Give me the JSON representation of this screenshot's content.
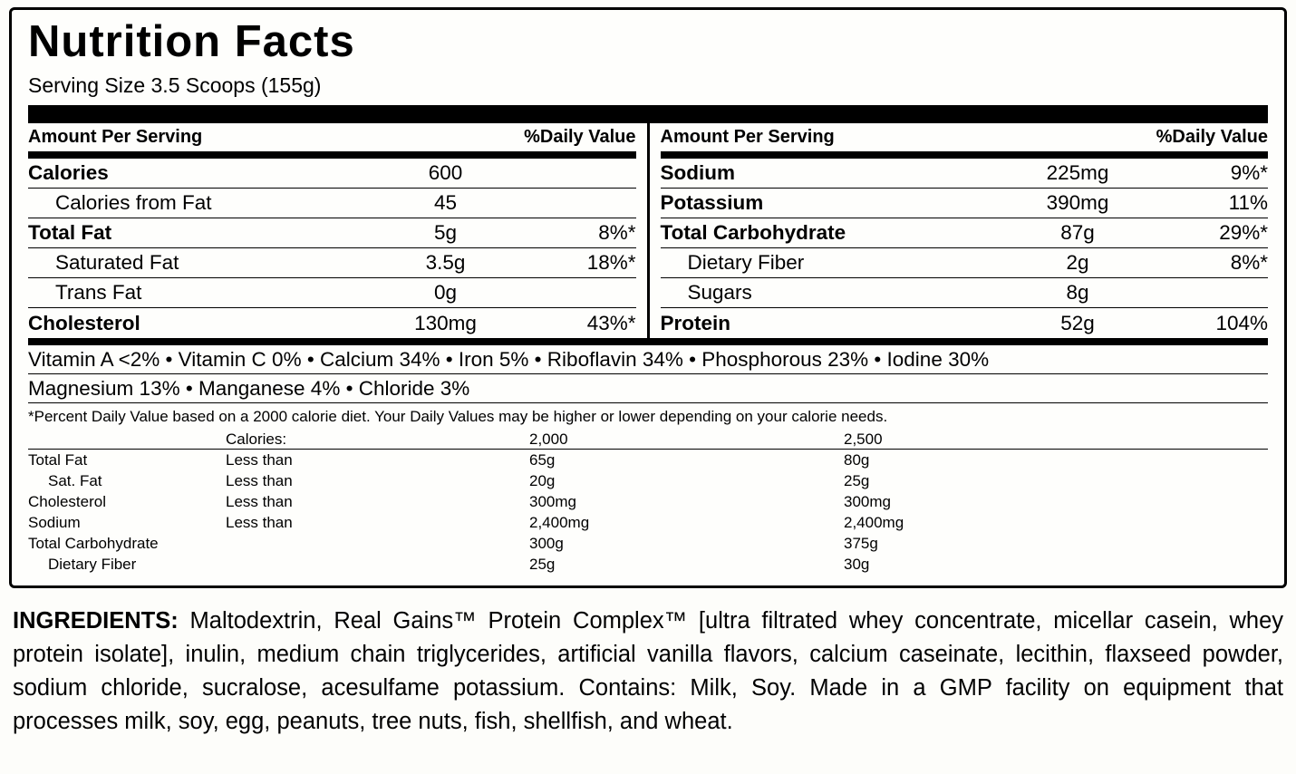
{
  "title": "Nutrition Facts",
  "serving_size": "Serving Size 3.5 Scoops (155g)",
  "header": {
    "amount_per_serving": "Amount Per Serving",
    "daily_value": "%Daily Value"
  },
  "left_column": {
    "rows": [
      {
        "name": "Calories",
        "amount": "600",
        "dv": ""
      },
      {
        "name": "Calories from Fat",
        "amount": "45",
        "dv": ""
      },
      {
        "name": "Total Fat",
        "amount": "5g",
        "dv": "8%*"
      },
      {
        "name": "Saturated Fat",
        "amount": "3.5g",
        "dv": "18%*"
      },
      {
        "name": "Trans Fat",
        "amount": "0g",
        "dv": ""
      },
      {
        "name": "Cholesterol",
        "amount": "130mg",
        "dv": "43%*"
      }
    ]
  },
  "right_column": {
    "rows": [
      {
        "name": "Sodium",
        "amount": "225mg",
        "dv": "9%*"
      },
      {
        "name": "Potassium",
        "amount": "390mg",
        "dv": "11%"
      },
      {
        "name": "Total Carbohydrate",
        "amount": "87g",
        "dv": "29%*"
      },
      {
        "name": "Dietary Fiber",
        "amount": "2g",
        "dv": "8%*"
      },
      {
        "name": "Sugars",
        "amount": "8g",
        "dv": ""
      },
      {
        "name": "Protein",
        "amount": "52g",
        "dv": "104%"
      }
    ]
  },
  "vitamins_line1": "Vitamin A <2% • Vitamin C 0% • Calcium 34% • Iron 5% • Riboflavin 34% • Phosphorous 23% • Iodine 30%",
  "vitamins_line2": "Magnesium 13% • Manganese 4% • Chloride 3%",
  "footnote": "*Percent Daily Value based on a 2000 calorie diet. Your Daily Values may be higher or lower depending on your calorie needs.",
  "dv_table": {
    "header": {
      "label": "Calories:",
      "col2000": "2,000",
      "col2500": "2,500"
    },
    "rows": [
      {
        "name": "Total Fat",
        "qualifier": "Less than",
        "v2000": "65g",
        "v2500": "80g"
      },
      {
        "name": "Sat. Fat",
        "qualifier": "Less than",
        "v2000": "20g",
        "v2500": "25g"
      },
      {
        "name": "Cholesterol",
        "qualifier": "Less than",
        "v2000": "300mg",
        "v2500": "300mg"
      },
      {
        "name": "Sodium",
        "qualifier": "Less than",
        "v2000": "2,400mg",
        "v2500": "2,400mg"
      },
      {
        "name": "Total Carbohydrate",
        "qualifier": "",
        "v2000": "300g",
        "v2500": "375g"
      },
      {
        "name": "Dietary Fiber",
        "qualifier": "",
        "v2000": "25g",
        "v2500": "30g"
      }
    ]
  },
  "ingredients": {
    "label": "INGREDIENTS:",
    "text": " Maltodextrin, Real Gains™ Protein Complex™ [ultra filtrated whey  concentrate, micellar casein, whey protein isolate], inulin, medium chain triglycerides, artificial vanilla flavors, calcium caseinate, lecithin, flaxseed powder, sodium chloride, sucralose, acesulfame potassium. Contains: Milk, Soy. Made in a GMP facility on equipment that processes milk, soy, egg, peanuts, tree nuts, fish, shellfish, and wheat."
  }
}
